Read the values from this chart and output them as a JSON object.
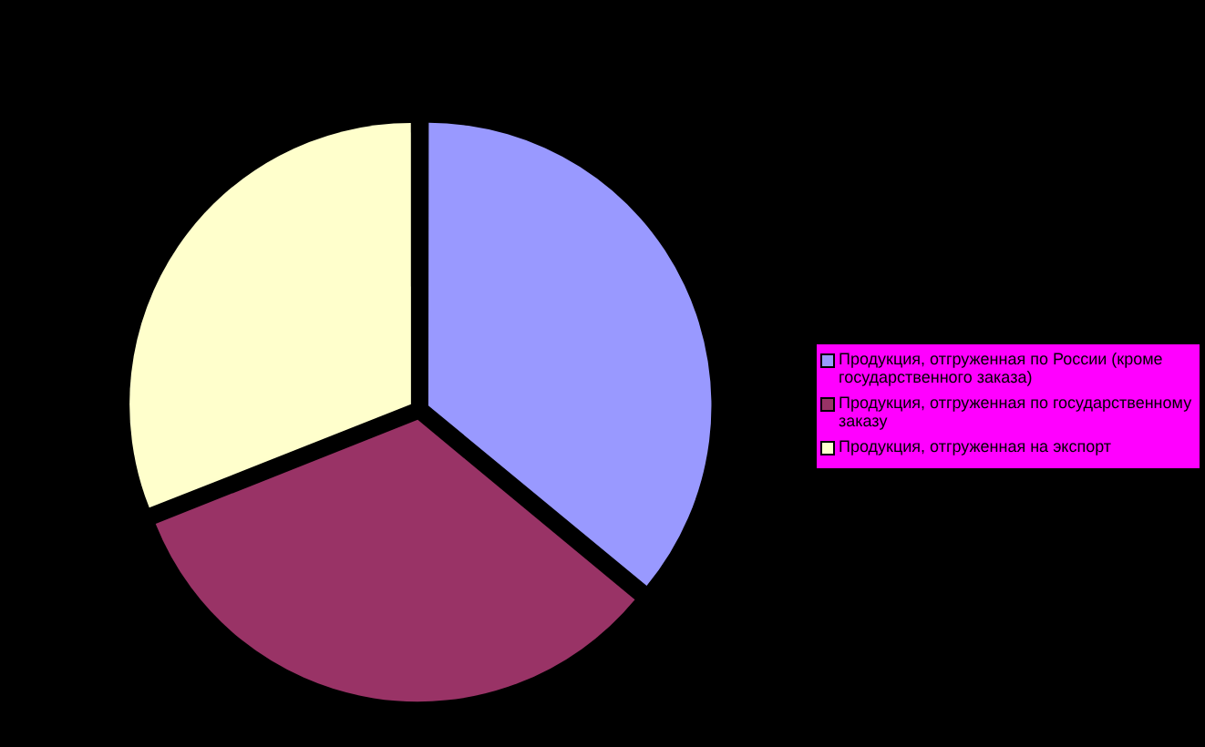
{
  "chart_data": {
    "type": "pie",
    "categories": [
      "Продукция, отгруженная по  России (кроме государственного заказа)",
      "Продукция, отгруженная по государственному заказу",
      "Продукция, отгруженная на  экспорт"
    ],
    "values": [
      36,
      33,
      31
    ],
    "colors": [
      "#9999ff",
      "#993366",
      "#ffffcc"
    ],
    "legend": "right"
  }
}
